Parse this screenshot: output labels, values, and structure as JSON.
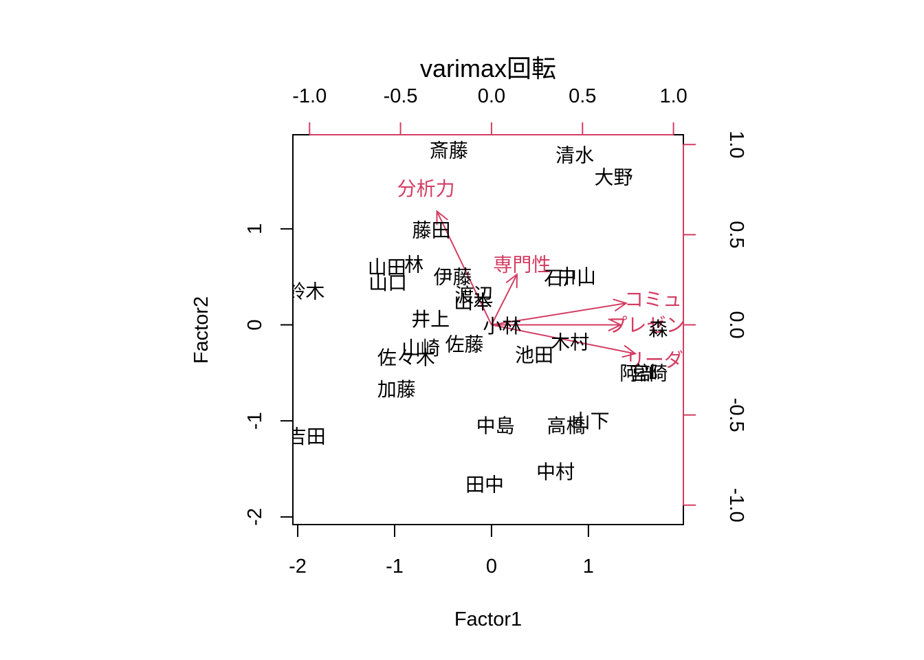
{
  "chart_data": {
    "type": "scatter",
    "title": "varimax回転",
    "xlabel": "Factor1",
    "ylabel": "Factor2",
    "xlim": [
      -2.05,
      1.98
    ],
    "ylim": [
      -2.08,
      1.98
    ],
    "x_ticks": [
      -2,
      -1,
      0,
      1
    ],
    "y_ticks": [
      -2,
      -1,
      0,
      1
    ],
    "x_tick_labels": [
      "-2",
      "-1",
      "0",
      "1"
    ],
    "y_tick_labels": [
      "-2",
      "-1",
      "0",
      "1"
    ],
    "secondary_axis_range": [
      -1.0,
      1.0
    ],
    "secondary_ticks": [
      -1.0,
      -0.5,
      0.0,
      0.5,
      1.0
    ],
    "secondary_tick_labels": [
      "-1.0",
      "-0.5",
      "0.0",
      "0.5",
      "1.0"
    ],
    "colors": {
      "points": "#000000",
      "loadings": "#d33d62",
      "frame": "#000000"
    },
    "points": [
      {
        "label": "斎藤",
        "x": -0.44,
        "y": 1.82
      },
      {
        "label": "清水",
        "x": 0.86,
        "y": 1.77
      },
      {
        "label": "大野",
        "x": 1.26,
        "y": 1.54
      },
      {
        "label": "藤田",
        "x": -0.62,
        "y": 0.99
      },
      {
        "label": "山田",
        "x": -1.08,
        "y": 0.6
      },
      {
        "label": "林",
        "x": -0.8,
        "y": 0.63
      },
      {
        "label": "山口",
        "x": -1.07,
        "y": 0.44
      },
      {
        "label": "伊藤",
        "x": -0.4,
        "y": 0.5
      },
      {
        "label": "石川",
        "x": 0.74,
        "y": 0.49
      },
      {
        "label": "中山",
        "x": 0.88,
        "y": 0.51
      },
      {
        "label": "鈴木",
        "x": -1.92,
        "y": 0.35
      },
      {
        "label": "渡辺",
        "x": -0.18,
        "y": 0.31
      },
      {
        "label": "山本",
        "x": -0.19,
        "y": 0.24
      },
      {
        "label": "井上",
        "x": -0.63,
        "y": 0.06
      },
      {
        "label": "小林",
        "x": 0.11,
        "y": -0.01
      },
      {
        "label": "森",
        "x": 1.72,
        "y": -0.04
      },
      {
        "label": "山崎",
        "x": -0.73,
        "y": -0.24
      },
      {
        "label": "佐藤",
        "x": -0.28,
        "y": -0.2
      },
      {
        "label": "木村",
        "x": 0.81,
        "y": -0.18
      },
      {
        "label": "佐々木",
        "x": -0.88,
        "y": -0.34
      },
      {
        "label": "池田",
        "x": 0.44,
        "y": -0.31
      },
      {
        "label": "阿部",
        "x": 1.52,
        "y": -0.5
      },
      {
        "label": "宮崎",
        "x": 1.62,
        "y": -0.5
      },
      {
        "label": "加藤",
        "x": -0.98,
        "y": -0.67
      },
      {
        "label": "中島",
        "x": 0.04,
        "y": -1.05
      },
      {
        "label": "高橋",
        "x": 0.77,
        "y": -1.05
      },
      {
        "label": "山下",
        "x": 1.02,
        "y": -1.0
      },
      {
        "label": "吉田",
        "x": -1.91,
        "y": -1.16
      },
      {
        "label": "中村",
        "x": 0.66,
        "y": -1.53
      },
      {
        "label": "田中",
        "x": -0.07,
        "y": -1.66
      }
    ],
    "loadings": [
      {
        "label": "分析力",
        "x": -0.3,
        "y": 0.63
      },
      {
        "label": "専門性",
        "x": 0.14,
        "y": 0.28
      },
      {
        "label": "コミュ",
        "x": 0.74,
        "y": 0.12
      },
      {
        "label": "プレゼン",
        "x": 0.71,
        "y": 0.0
      },
      {
        "label": "リーダー",
        "x": 0.79,
        "y": -0.16
      }
    ]
  }
}
